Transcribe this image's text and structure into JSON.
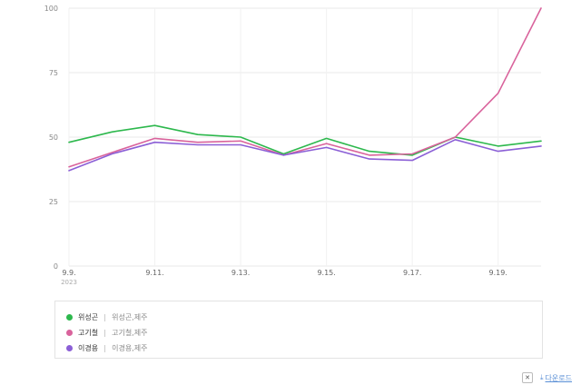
{
  "chart_data": {
    "type": "line",
    "x": [
      "9.9.",
      "9.10.",
      "9.11.",
      "9.12.",
      "9.13.",
      "9.14.",
      "9.15.",
      "9.16.",
      "9.17.",
      "9.18.",
      "9.19.",
      "9.20."
    ],
    "x_tick_labels": [
      "9.9.",
      "9.11.",
      "9.13.",
      "9.15.",
      "9.17.",
      "9.19."
    ],
    "x_year_label": "2023",
    "y_tick_labels": [
      "100",
      "75",
      "50",
      "25",
      "0"
    ],
    "ylim": [
      0,
      100
    ],
    "grid": true,
    "legend_position": "bottom",
    "series": [
      {
        "name": "위성곤",
        "color": "#2db84d",
        "values": [
          48,
          52,
          54.5,
          51,
          50,
          43.5,
          49.5,
          44.5,
          43,
          50,
          46.5,
          48.5
        ]
      },
      {
        "name": "고기철",
        "color": "#d9639c",
        "values": [
          38.5,
          44,
          49.5,
          48,
          48.5,
          43,
          47.5,
          43,
          43.5,
          50,
          67,
          100
        ]
      },
      {
        "name": "이경용",
        "color": "#8b5fd6",
        "values": [
          37,
          43.5,
          48,
          47,
          47,
          43,
          46,
          41.5,
          41,
          49,
          44.5,
          46.5
        ]
      }
    ]
  },
  "legend": [
    {
      "name": "위성곤",
      "terms": "위성곤,제주",
      "color": "#2db84d"
    },
    {
      "name": "고기철",
      "terms": "고기철,제주",
      "color": "#d9639c"
    },
    {
      "name": "이경용",
      "terms": "이경용,제주",
      "color": "#8b5fd6"
    }
  ],
  "footer": {
    "excel_icon_glyph": "✕",
    "download_icon_glyph": "⤓",
    "download_label": "다운로드"
  }
}
